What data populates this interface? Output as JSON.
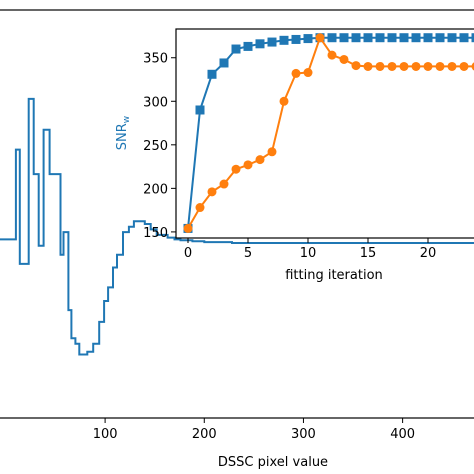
{
  "chart_data": [
    {
      "type": "line",
      "xlabel": "DSSC pixel value",
      "ylabel": "",
      "xlim": [
        -8,
        474
      ],
      "ylim": [
        -5,
        40
      ],
      "xticks": [
        100,
        200,
        300,
        400
      ],
      "grid": false,
      "series": [
        {
          "color": "#1f77b4",
          "step": true,
          "x": [
            -8,
            2,
            5,
            10,
            14,
            17,
            23,
            28,
            33,
            38,
            44,
            50,
            55,
            58,
            63,
            66,
            70,
            74,
            77,
            82,
            88,
            94,
            99,
            103,
            108,
            112,
            118,
            124,
            129,
            135,
            140,
            146,
            152,
            158,
            163,
            170,
            176,
            182,
            188,
            195,
            200,
            206,
            212,
            218,
            222,
            228,
            236,
            250,
            300,
            350,
            400,
            460,
            474
          ],
          "y": [
            14.7,
            14.7,
            14.7,
            24.6,
            12.0,
            12.0,
            30.2,
            21.9,
            14.0,
            26.8,
            21.9,
            21.9,
            13.0,
            15.5,
            6.9,
            3.8,
            3.2,
            2.0,
            2.0,
            2.3,
            3.2,
            5.6,
            7.9,
            9.4,
            11.6,
            13.0,
            15.5,
            16.1,
            16.7,
            16.7,
            16.4,
            15.8,
            15.2,
            15.2,
            14.9,
            14.7,
            14.6,
            14.6,
            14.5,
            14.5,
            14.4,
            14.4,
            14.4,
            14.4,
            14.4,
            14.3,
            14.3,
            14.3,
            14.3,
            14.3,
            14.3,
            14.3,
            14.3
          ],
          "y_note": ""
        }
      ]
    },
    {
      "type": "line",
      "xlabel": "fitting iteration",
      "ylabel": "SNRw",
      "xlim": [
        -1,
        24
      ],
      "ylim": [
        143,
        383
      ],
      "xticks": [
        0,
        5,
        10,
        15,
        20
      ],
      "xticklabels": [
        "0",
        "5",
        "10",
        "15",
        "20"
      ],
      "yticks": [
        150,
        200,
        250,
        300,
        350
      ],
      "grid": false,
      "series": [
        {
          "color": "#1f77b4",
          "marker": "square",
          "x": [
            0,
            1,
            2,
            3,
            4,
            5,
            6,
            7,
            8,
            9,
            10,
            11,
            12,
            13,
            14,
            15,
            16,
            17,
            18,
            19,
            20,
            21,
            22,
            23,
            24
          ],
          "y": [
            154,
            290,
            331,
            344,
            360,
            363,
            366,
            368,
            370,
            371,
            372,
            373,
            373,
            373,
            373,
            373,
            373,
            373,
            373,
            373,
            373,
            373,
            373,
            373,
            373
          ]
        },
        {
          "color": "#ff7f0e",
          "marker": "circle",
          "x": [
            0,
            1,
            2,
            3,
            4,
            5,
            6,
            7,
            8,
            9,
            10,
            11,
            12,
            13,
            14,
            15,
            16,
            17,
            18,
            19,
            20,
            21,
            22,
            23,
            24
          ],
          "y": [
            154,
            178,
            196,
            205,
            222,
            227,
            233,
            242,
            300,
            332,
            333,
            373,
            353,
            348,
            341,
            340,
            340,
            340,
            340,
            340,
            340,
            340,
            340,
            340,
            340
          ]
        }
      ]
    }
  ]
}
